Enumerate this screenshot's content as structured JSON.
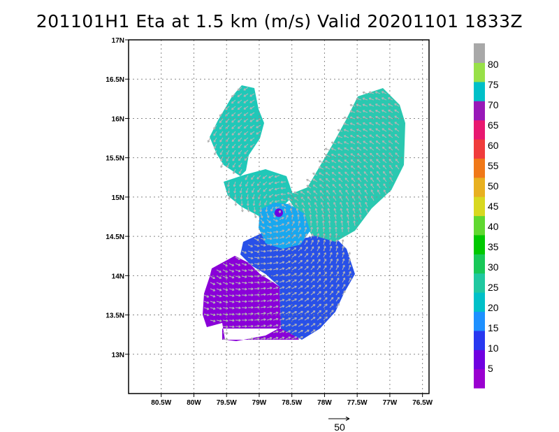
{
  "title": "201101H1 Eta at 1.5 km (m/s) Valid 20201101 1833Z",
  "map": {
    "lon_range": [
      -81.0,
      -76.4
    ],
    "lat_range": [
      12.5,
      17.0
    ],
    "lon_ticks": [
      {
        "value": -80.5,
        "label": "80.5W"
      },
      {
        "value": -80.0,
        "label": "80W"
      },
      {
        "value": -79.5,
        "label": "79.5W"
      },
      {
        "value": -79.0,
        "label": "79W"
      },
      {
        "value": -78.5,
        "label": "78.5W"
      },
      {
        "value": -78.0,
        "label": "78W"
      },
      {
        "value": -77.5,
        "label": "77.5W"
      },
      {
        "value": -77.0,
        "label": "77W"
      },
      {
        "value": -76.5,
        "label": "76.5W"
      }
    ],
    "lat_ticks": [
      {
        "value": 13.0,
        "label": "13N"
      },
      {
        "value": 13.5,
        "label": "13.5N"
      },
      {
        "value": 14.0,
        "label": "14N"
      },
      {
        "value": 14.5,
        "label": "14.5N"
      },
      {
        "value": 15.0,
        "label": "15N"
      },
      {
        "value": 15.5,
        "label": "15.5N"
      },
      {
        "value": 16.0,
        "label": "16N"
      },
      {
        "value": 16.5,
        "label": "16.5N"
      },
      {
        "value": 17.0,
        "label": "17N"
      }
    ],
    "grid": "dotted"
  },
  "colorbar": {
    "colors": [
      "#9a00d0",
      "#7000e0",
      "#2838f0",
      "#1e90ff",
      "#00c0c8",
      "#20c8a0",
      "#18c858",
      "#00c800",
      "#60d830",
      "#d8d820",
      "#e8b020",
      "#f07818",
      "#f03c3c",
      "#e81870",
      "#9818b8",
      "#00c0c8",
      "#98e048",
      "#a8a8a8"
    ],
    "labels": [
      "5",
      "10",
      "15",
      "20",
      "25",
      "30",
      "35",
      "40",
      "45",
      "50",
      "55",
      "60",
      "65",
      "70",
      "75",
      "80"
    ]
  },
  "reference_vector": {
    "label": "50"
  },
  "wind_field": {
    "center": {
      "lon": -78.7,
      "lat": 14.8
    },
    "regions": [
      {
        "name": "northwest-band",
        "speed": 22,
        "color": "#20c8b8"
      },
      {
        "name": "northeast-band",
        "speed": 22,
        "color": "#2ac8b0"
      },
      {
        "name": "core",
        "speed": 18,
        "color": "#18a8f0"
      },
      {
        "name": "southern-band",
        "speed": 10,
        "color": "#2850e8"
      },
      {
        "name": "southwest-band",
        "speed": 5,
        "color": "#8a00d8"
      }
    ]
  }
}
